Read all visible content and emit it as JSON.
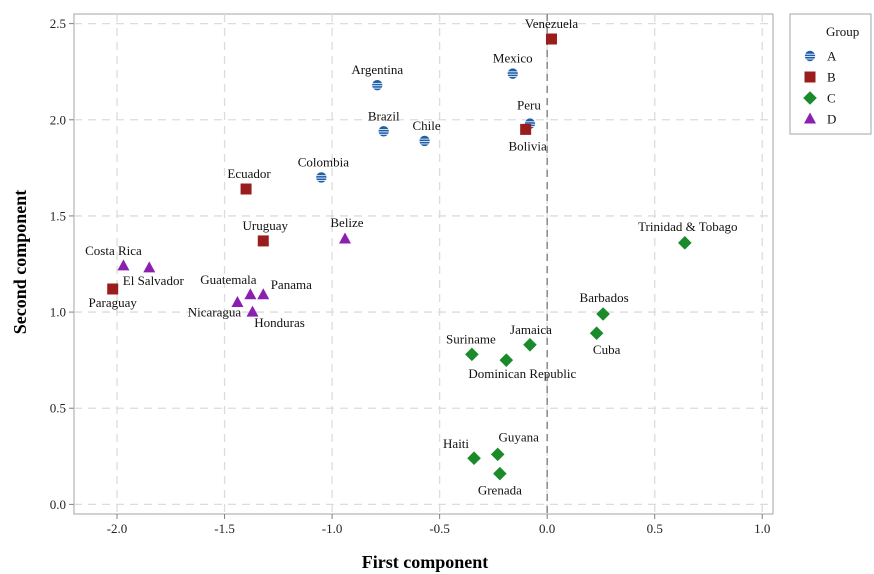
{
  "chart_data": {
    "type": "scatter",
    "xlabel": "First component",
    "ylabel": "Second component",
    "xlim": [
      -2.2,
      1.05
    ],
    "ylim": [
      -0.05,
      2.55
    ],
    "xticks": [
      -2.0,
      -1.5,
      -1.0,
      -0.5,
      0.0,
      0.5,
      1.0
    ],
    "yticks": [
      0.0,
      0.5,
      1.0,
      1.5,
      2.0,
      2.5
    ],
    "xtick_labels": [
      "-2.0",
      "-1.5",
      "-1.0",
      "-0.5",
      "0.0",
      "0.5",
      "1.0"
    ],
    "ytick_labels": [
      "0.0",
      "0.5",
      "1.0",
      "1.5",
      "2.0",
      "2.5"
    ],
    "grid": true,
    "reference_line_x": 0.0,
    "legend": {
      "title": "Group",
      "placement": "outside-right"
    },
    "series": [
      {
        "name": "A",
        "color": "#1f5fa8",
        "marker": "circle",
        "points": [
          {
            "label": "Argentina",
            "x": -0.79,
            "y": 2.18
          },
          {
            "label": "Mexico",
            "x": -0.16,
            "y": 2.24
          },
          {
            "label": "Brazil",
            "x": -0.76,
            "y": 1.94
          },
          {
            "label": "Chile",
            "x": -0.57,
            "y": 1.89
          },
          {
            "label": "Peru",
            "x": -0.08,
            "y": 1.98
          },
          {
            "label": "Colombia",
            "x": -1.05,
            "y": 1.7
          }
        ]
      },
      {
        "name": "B",
        "color": "#9b1c1c",
        "marker": "square",
        "points": [
          {
            "label": "Venezuela",
            "x": 0.02,
            "y": 2.42
          },
          {
            "label": "Bolivia",
            "x": -0.1,
            "y": 1.95
          },
          {
            "label": "Ecuador",
            "x": -1.4,
            "y": 1.64
          },
          {
            "label": "Uruguay",
            "x": -1.32,
            "y": 1.37
          },
          {
            "label": "Paraguay",
            "x": -2.02,
            "y": 1.12
          }
        ]
      },
      {
        "name": "C",
        "color": "#1a8a2a",
        "marker": "diamond",
        "points": [
          {
            "label": "Trinidad & Tobago",
            "x": 0.64,
            "y": 1.36
          },
          {
            "label": "Barbados",
            "x": 0.26,
            "y": 0.99
          },
          {
            "label": "Cuba",
            "x": 0.23,
            "y": 0.89
          },
          {
            "label": "Jamaica",
            "x": -0.08,
            "y": 0.83
          },
          {
            "label": "Suriname",
            "x": -0.35,
            "y": 0.78
          },
          {
            "label": "Dominican Republic",
            "x": -0.19,
            "y": 0.75
          },
          {
            "label": "Guyana",
            "x": -0.23,
            "y": 0.26
          },
          {
            "label": "Haiti",
            "x": -0.34,
            "y": 0.24
          },
          {
            "label": "Grenada",
            "x": -0.22,
            "y": 0.16
          }
        ]
      },
      {
        "name": "D",
        "color": "#8a1fb0",
        "marker": "triangle",
        "points": [
          {
            "label": "Belize",
            "x": -0.94,
            "y": 1.38
          },
          {
            "label": "Costa Rica",
            "x": -1.97,
            "y": 1.24
          },
          {
            "label": "El Salvador",
            "x": -1.85,
            "y": 1.23
          },
          {
            "label": "Guatemala",
            "x": -1.38,
            "y": 1.09
          },
          {
            "label": "Panama",
            "x": -1.32,
            "y": 1.09
          },
          {
            "label": "Nicaragua",
            "x": -1.44,
            "y": 1.05
          },
          {
            "label": "Honduras",
            "x": -1.37,
            "y": 1.0
          }
        ]
      }
    ]
  }
}
